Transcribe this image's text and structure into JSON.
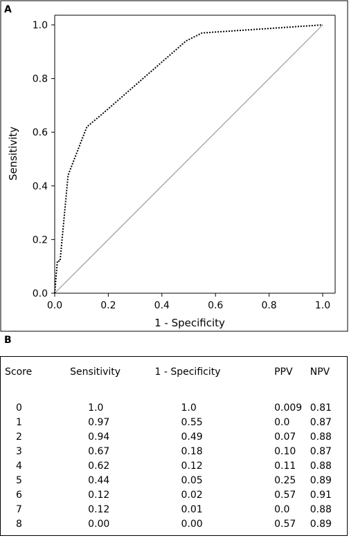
{
  "panel_a_label": "A",
  "panel_b_label": "B",
  "chart_data": {
    "type": "line",
    "xlabel": "1 - Specificity",
    "ylabel": "Sensitivity",
    "xlim": [
      0.0,
      1.0
    ],
    "ylim": [
      0.0,
      1.0
    ],
    "x_ticks": [
      "0.0",
      "0.2",
      "0.4",
      "0.6",
      "0.8",
      "1.0"
    ],
    "y_ticks": [
      "0.0",
      "0.2",
      "0.4",
      "0.6",
      "0.8",
      "1.0"
    ],
    "grid": false,
    "series": [
      {
        "style": "dotted",
        "color": "#000000",
        "points": [
          [
            0.0,
            0.0
          ],
          [
            0.01,
            0.12
          ],
          [
            0.02,
            0.12
          ],
          [
            0.05,
            0.44
          ],
          [
            0.12,
            0.62
          ],
          [
            0.18,
            0.67
          ],
          [
            0.49,
            0.94
          ],
          [
            0.55,
            0.97
          ],
          [
            1.0,
            1.0
          ]
        ]
      },
      {
        "style": "solid",
        "color": "#999999",
        "points": [
          [
            0.0,
            0.0
          ],
          [
            1.0,
            1.0
          ]
        ]
      }
    ]
  },
  "table": {
    "headers": [
      "Score",
      "Sensitivity",
      "1 - Specificity",
      "PPV",
      "NPV"
    ],
    "rows": [
      [
        "0",
        "1.0",
        "1.0",
        "0.009",
        "0.81"
      ],
      [
        "1",
        "0.97",
        "0.55",
        "0.0",
        "0.87"
      ],
      [
        "2",
        "0.94",
        "0.49",
        "0.07",
        "0.88"
      ],
      [
        "3",
        "0.67",
        "0.18",
        "0.10",
        "0.87"
      ],
      [
        "4",
        "0.62",
        "0.12",
        "0.11",
        "0.88"
      ],
      [
        "5",
        "0.44",
        "0.05",
        "0.25",
        "0.89"
      ],
      [
        "6",
        "0.12",
        "0.02",
        "0.57",
        "0.91"
      ],
      [
        "7",
        "0.12",
        "0.01",
        "0.0",
        "0.88"
      ],
      [
        "8",
        "0.00",
        "0.00",
        "0.57",
        "0.89"
      ]
    ]
  }
}
